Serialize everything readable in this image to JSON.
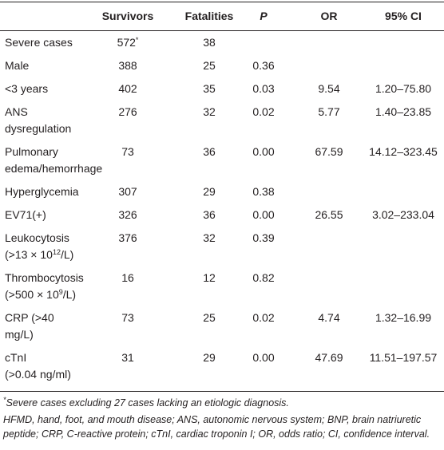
{
  "table": {
    "header": [
      "Survivors",
      "Fatalities",
      "P",
      "OR",
      "95% CI"
    ],
    "rows": [
      {
        "label": [
          "Severe cases"
        ],
        "cells": [
          [
            "572",
            {
              "sup": "*"
            }
          ],
          "38",
          null,
          null,
          null
        ]
      },
      {
        "label": [
          "Male"
        ],
        "cells": [
          "388",
          "25",
          "0.36",
          null,
          null
        ]
      },
      {
        "label": [
          "<3 years"
        ],
        "cells": [
          "402",
          "35",
          "0.03",
          "9.54",
          "1.20–75.80"
        ]
      },
      {
        "label": [
          "ANS",
          "dysregulation"
        ],
        "cells": [
          "276",
          "32",
          "0.02",
          "5.77",
          "1.40–23.85"
        ]
      },
      {
        "label": [
          "Pulmonary",
          "edema/hemorrhage"
        ],
        "cells": [
          "73",
          "36",
          "0.00",
          "67.59",
          "14.12–323.45"
        ]
      },
      {
        "label": [
          "Hyperglycemia"
        ],
        "cells": [
          "307",
          "29",
          "0.38",
          null,
          null
        ]
      },
      {
        "label": [
          "EV71(+)"
        ],
        "cells": [
          "326",
          "36",
          "0.00",
          "26.55",
          "3.02–233.04"
        ]
      },
      {
        "label": [
          "Leukocytosis",
          [
            "(>13 × 10",
            {
              "sup": "12"
            },
            "/L)"
          ]
        ],
        "cells": [
          "376",
          "32",
          "0.39",
          null,
          null
        ]
      },
      {
        "label": [
          "Thrombocytosis",
          [
            "(>500 × 10",
            {
              "sup": "9"
            },
            "/L)"
          ]
        ],
        "cells": [
          "16",
          "12",
          "0.82",
          null,
          null
        ]
      },
      {
        "label": [
          "CRP (>40",
          "mg/L)"
        ],
        "cells": [
          "73",
          "25",
          "0.02",
          "4.74",
          "1.32–16.99"
        ]
      },
      {
        "label": [
          "cTnI",
          "(>0.04 ng/ml)"
        ],
        "cells": [
          "31",
          "29",
          "0.00",
          "47.69",
          "11.51–197.57"
        ]
      }
    ],
    "footnotes": [
      [
        {
          "sup": "*"
        },
        "Severe cases excluding 27 cases lacking an etiologic diagnosis."
      ],
      "HFMD, hand, foot, and mouth disease; ANS, autonomic nervous system; BNP, brain natriuretic peptide; CRP, C-reactive protein; cTnI, cardiac troponin I; OR, odds ratio; CI, confidence interval."
    ]
  }
}
